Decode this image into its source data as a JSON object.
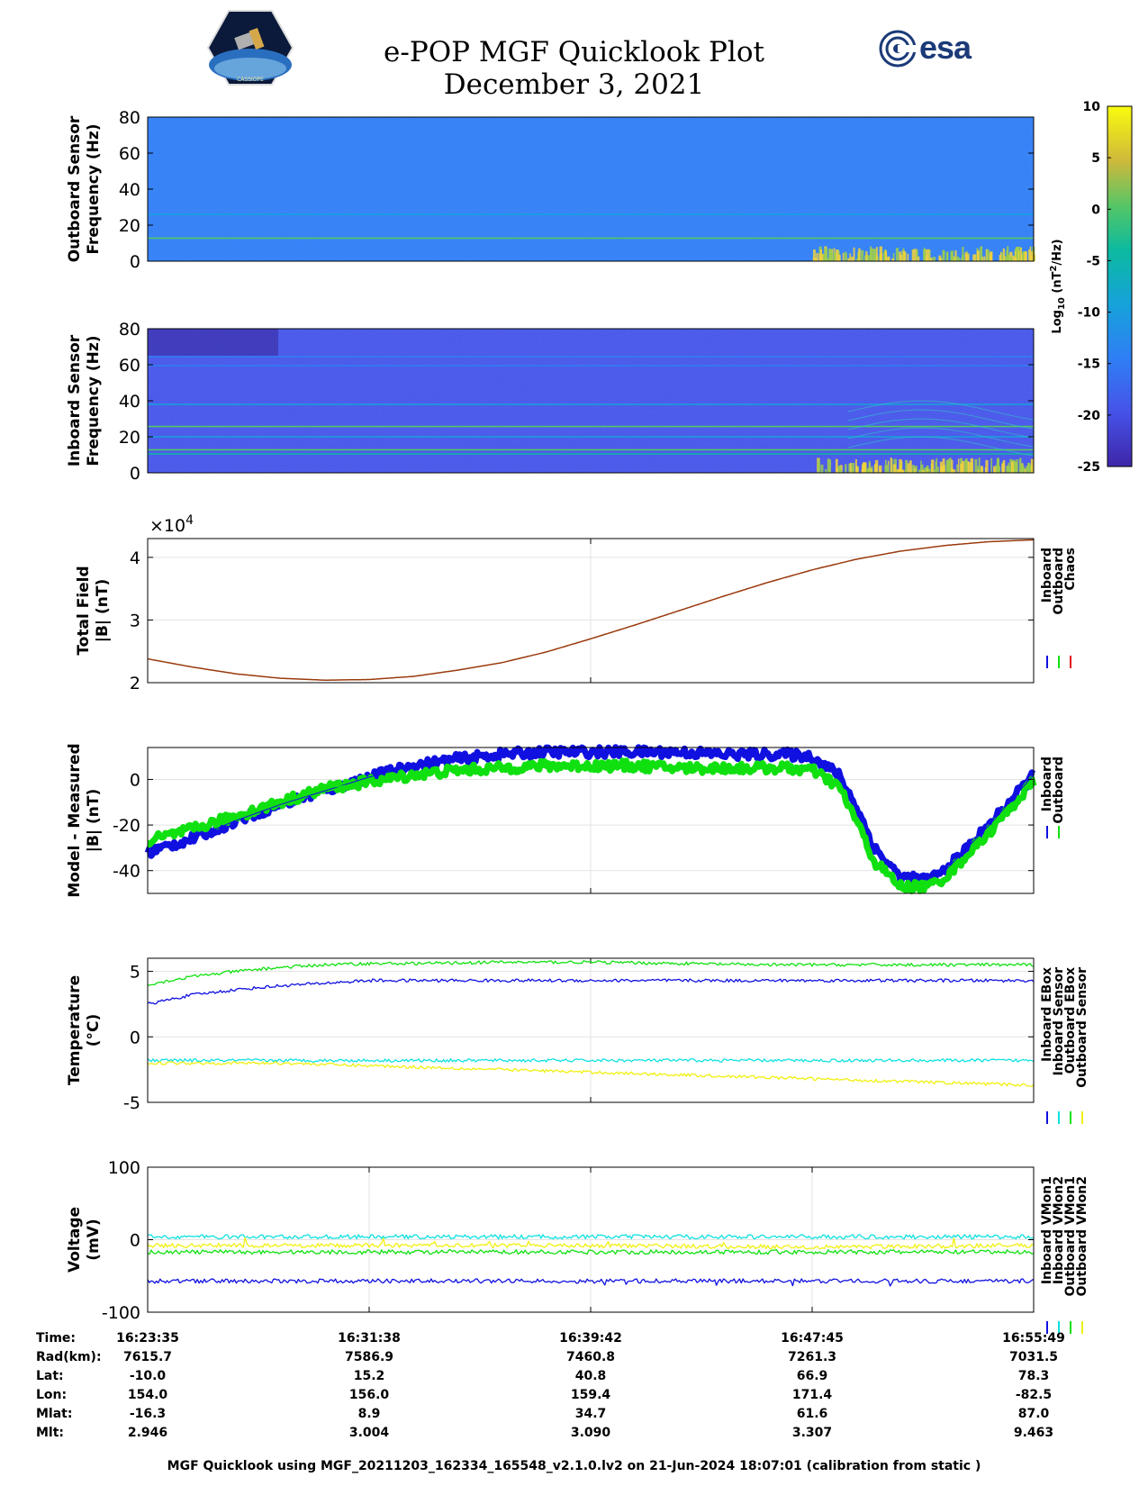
{
  "header": {
    "title_line1": "e-POP MGF Quicklook Plot",
    "title_line2": "December 3, 2021",
    "logo_left": "CASSIOPE",
    "logo_right": "esa"
  },
  "colors": {
    "inboard": "#1010e0",
    "outboard": "#10e010",
    "chaos": "#e01010",
    "cyan": "#10e0e0",
    "yellow": "#f0f010",
    "brown": "#9a3a0c"
  },
  "colorbar": {
    "label": "Log10 (nT2/Hz)",
    "ticks": [
      10,
      5,
      0,
      -5,
      -10,
      -15,
      -20,
      -25
    ],
    "range": [
      -25,
      10
    ],
    "colormap": "parula"
  },
  "chart_data": [
    {
      "type": "heatmap",
      "ylabel": "Outboard Sensor Frequency (Hz)",
      "ylim": [
        0,
        80
      ],
      "yticks": [
        0,
        20,
        40,
        60,
        80
      ],
      "background_log10": -13,
      "lines": [
        {
          "freq": 12.8,
          "log10": 2
        },
        {
          "freq": 26,
          "log10": -8
        }
      ],
      "low_freq_activity_start_fraction": 0.75
    },
    {
      "type": "heatmap",
      "ylabel": "Inboard Sensor Frequency (Hz)",
      "ylim": [
        0,
        80
      ],
      "yticks": [
        0,
        20,
        40,
        60,
        80
      ],
      "background_log10": -19,
      "lines": [
        {
          "freq": 10.5,
          "log10": -6
        },
        {
          "freq": 12.8,
          "log10": 2
        },
        {
          "freq": 20,
          "log10": -12
        },
        {
          "freq": 25.7,
          "log10": 0
        },
        {
          "freq": 38,
          "log10": -12
        },
        {
          "freq": 59.5,
          "log10": -14
        },
        {
          "freq": 64.5,
          "log10": -14
        }
      ],
      "low_freq_activity_start_fraction": 0.75
    },
    {
      "type": "line",
      "ylabel": "Total Field |B| (nT)",
      "yscale_label": "×10^4",
      "ylim": [
        2,
        4.3
      ],
      "yticks": [
        2,
        3,
        4
      ],
      "x_fraction": [
        0,
        0.05,
        0.1,
        0.15,
        0.2,
        0.25,
        0.3,
        0.35,
        0.4,
        0.45,
        0.5,
        0.55,
        0.6,
        0.65,
        0.7,
        0.75,
        0.8,
        0.85,
        0.9,
        0.95,
        1
      ],
      "series": [
        {
          "name": "Inboard",
          "color": "#1010e0",
          "values": [
            2.38,
            2.25,
            2.14,
            2.07,
            2.04,
            2.05,
            2.1,
            2.2,
            2.32,
            2.49,
            2.7,
            2.92,
            3.15,
            3.38,
            3.6,
            3.8,
            3.97,
            4.1,
            4.19,
            4.25,
            4.28
          ]
        },
        {
          "name": "Outboard",
          "color": "#10e010",
          "values": [
            2.38,
            2.25,
            2.14,
            2.07,
            2.04,
            2.05,
            2.1,
            2.2,
            2.32,
            2.49,
            2.7,
            2.92,
            3.15,
            3.38,
            3.6,
            3.8,
            3.97,
            4.1,
            4.19,
            4.25,
            4.28
          ]
        },
        {
          "name": "Chaos",
          "color": "#e01010",
          "values": [
            2.38,
            2.25,
            2.14,
            2.07,
            2.04,
            2.05,
            2.1,
            2.2,
            2.32,
            2.49,
            2.7,
            2.92,
            3.15,
            3.38,
            3.6,
            3.8,
            3.97,
            4.1,
            4.19,
            4.25,
            4.28
          ]
        }
      ]
    },
    {
      "type": "line",
      "ylabel": "Model - Measured |B| (nT)",
      "ylim": [
        -50,
        14
      ],
      "yticks": [
        -40,
        -20,
        0
      ],
      "x_fraction": [
        0,
        0.05,
        0.1,
        0.15,
        0.2,
        0.25,
        0.3,
        0.35,
        0.4,
        0.45,
        0.5,
        0.55,
        0.6,
        0.65,
        0.7,
        0.72,
        0.75,
        0.78,
        0.8,
        0.82,
        0.85,
        0.88,
        0.9,
        0.92,
        0.95,
        1
      ],
      "series": [
        {
          "name": "Inboard",
          "color": "#1010e0",
          "values": [
            -32,
            -26,
            -18,
            -11,
            -5,
            1,
            6,
            9,
            11,
            12,
            12,
            12,
            12,
            11,
            11,
            11,
            10,
            2,
            -12,
            -30,
            -43,
            -44,
            -40,
            -32,
            -20,
            2
          ]
        },
        {
          "name": "Outboard",
          "color": "#10e010",
          "values": [
            -27,
            -22,
            -16,
            -10,
            -4,
            -1,
            2,
            4,
            5,
            6,
            6,
            6,
            5,
            5,
            5,
            5,
            4,
            -3,
            -18,
            -36,
            -47,
            -47,
            -43,
            -35,
            -23,
            -1
          ]
        }
      ]
    },
    {
      "type": "line",
      "ylabel": "Temperature (°C)",
      "ylim": [
        -5,
        6
      ],
      "yticks": [
        -5,
        0,
        5
      ],
      "x_fraction": [
        0,
        0.05,
        0.1,
        0.15,
        0.2,
        0.25,
        0.3,
        0.4,
        0.5,
        0.6,
        0.7,
        0.8,
        0.9,
        1
      ],
      "series": [
        {
          "name": "Inboard EBox",
          "color": "#1010e0",
          "values": [
            2.5,
            3.2,
            3.6,
            3.9,
            4.1,
            4.3,
            4.3,
            4.3,
            4.3,
            4.3,
            4.3,
            4.3,
            4.3,
            4.3
          ]
        },
        {
          "name": "Inboard Sensor",
          "color": "#10e0e0",
          "values": [
            -1.8,
            -1.8,
            -1.8,
            -1.8,
            -1.8,
            -1.8,
            -1.8,
            -1.8,
            -1.8,
            -1.8,
            -1.8,
            -1.8,
            -1.8,
            -1.8
          ]
        },
        {
          "name": "Outboard EBox",
          "color": "#10e010",
          "values": [
            4.0,
            4.6,
            5.0,
            5.3,
            5.5,
            5.6,
            5.6,
            5.7,
            5.7,
            5.6,
            5.5,
            5.5,
            5.5,
            5.5
          ]
        },
        {
          "name": "Outboard Sensor",
          "color": "#f0f010",
          "values": [
            -2.0,
            -2.0,
            -2.0,
            -2.0,
            -2.1,
            -2.2,
            -2.3,
            -2.5,
            -2.7,
            -2.9,
            -3.1,
            -3.3,
            -3.5,
            -3.7
          ]
        }
      ]
    },
    {
      "type": "line",
      "ylabel": "Voltage (mV)",
      "ylim": [
        -100,
        100
      ],
      "yticks": [
        -100,
        0,
        100
      ],
      "x_fraction": [
        0,
        0.25,
        0.5,
        0.75,
        1
      ],
      "series": [
        {
          "name": "Inboard VMon1",
          "color": "#1010e0",
          "values": [
            -57,
            -57,
            -57,
            -57,
            -57
          ]
        },
        {
          "name": "Inboard VMon2",
          "color": "#10e0e0",
          "values": [
            4,
            4,
            4,
            4,
            4
          ]
        },
        {
          "name": "Outboard VMon1",
          "color": "#10e010",
          "values": [
            -17,
            -17,
            -17,
            -17,
            -17
          ]
        },
        {
          "name": "Outboard VMon2",
          "color": "#f0f010",
          "values": [
            -8,
            -8,
            -8,
            -10,
            -8
          ]
        }
      ]
    }
  ],
  "info": {
    "labels": [
      "Time:",
      "Rad(km):",
      "Lat:",
      "Lon:",
      "Mlat:",
      "Mlt:"
    ],
    "columns": [
      [
        "16:23:35",
        "7615.7",
        "-10.0",
        "154.0",
        "-16.3",
        "2.946"
      ],
      [
        "16:31:38",
        "7586.9",
        "15.2",
        "156.0",
        "8.9",
        "3.004"
      ],
      [
        "16:39:42",
        "7460.8",
        "40.8",
        "159.4",
        "34.7",
        "3.090"
      ],
      [
        "16:47:45",
        "7261.3",
        "66.9",
        "171.4",
        "61.6",
        "3.307"
      ],
      [
        "16:55:49",
        "7031.5",
        "78.3",
        "-82.5",
        "87.0",
        "9.463"
      ]
    ]
  },
  "footer": "MGF Quicklook using MGF_20211203_162334_165548_v2.1.0.lv2 on 21-Jun-2024 18:07:01 (calibration from static )"
}
